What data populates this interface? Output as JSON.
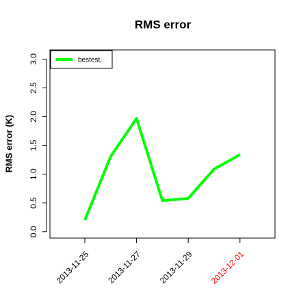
{
  "chart_data": {
    "type": "line",
    "title": "RMS error",
    "y_label": "RMS error (K)",
    "categories": [
      "2013-11-25",
      null,
      "2013-11-27",
      null,
      "2013-11-29",
      null,
      "2013-12-01"
    ],
    "category_label_colors": [
      "#000000",
      null,
      "#000000",
      null,
      "#000000",
      null,
      "#ff0000"
    ],
    "series": [
      {
        "name": "bestest.",
        "color": "#00ff00",
        "values": [
          0.2,
          1.31,
          1.97,
          0.54,
          0.58,
          1.09,
          1.34
        ]
      }
    ],
    "ylim": [
      -0.11,
      3.16
    ],
    "yticks": [
      {
        "value": 0,
        "label": "0.0"
      },
      0.5,
      {
        "value": 1,
        "label": "1.0"
      },
      1.5,
      {
        "value": 2,
        "label": "2.0"
      },
      2.5,
      {
        "value": 3,
        "label": "3.0"
      }
    ],
    "legend": "top-left",
    "grid": false
  }
}
